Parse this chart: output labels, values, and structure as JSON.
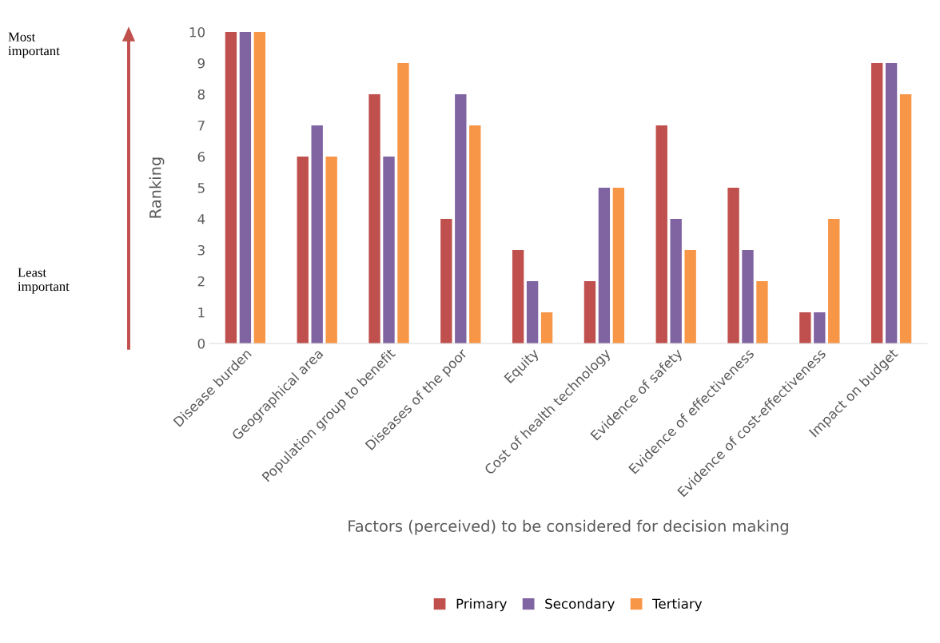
{
  "chart_data": {
    "type": "bar",
    "xlabel": "Factors (perceived) to be considered for decision making",
    "ylabel": "Ranking",
    "categories": [
      "Disease burden",
      "Geographical area",
      "Population group to benefit",
      "Diseases of the poor",
      "Equity",
      "Cost of health technology",
      "Evidence of safety",
      "Evidence of effectiveness",
      "Evidence of cost-effectiveness",
      "Impact on budget"
    ],
    "series": [
      {
        "name": "Primary",
        "color": "#c0504d",
        "values": [
          10,
          6,
          8,
          4,
          3,
          2,
          7,
          5,
          1,
          9
        ]
      },
      {
        "name": "Secondary",
        "color": "#8064a2",
        "values": [
          10,
          7,
          6,
          8,
          2,
          5,
          4,
          3,
          1,
          9
        ]
      },
      {
        "name": "Tertiary",
        "color": "#f79646",
        "values": [
          10,
          6,
          9,
          7,
          1,
          5,
          3,
          2,
          4,
          8
        ]
      }
    ],
    "ylim": [
      0,
      10
    ],
    "yticks": [
      0,
      1,
      2,
      3,
      4,
      5,
      6,
      7,
      8,
      9,
      10
    ],
    "grid": false,
    "legend": "bottom",
    "annotations": [
      "Most\nimportant",
      "Least\nimportant"
    ]
  }
}
